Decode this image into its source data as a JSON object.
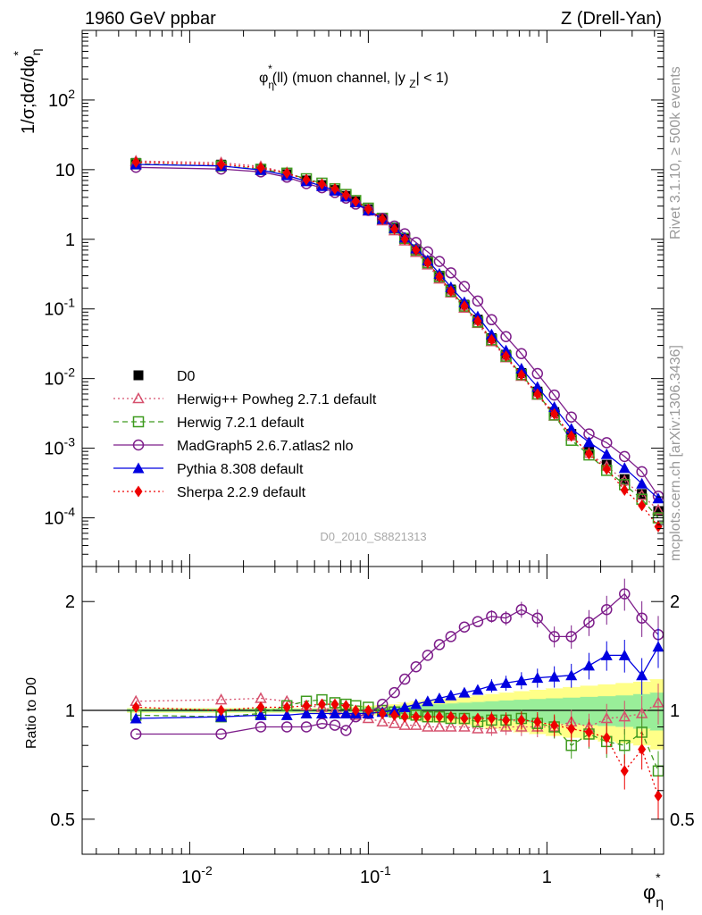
{
  "header": {
    "left": "1960 GeV ppbar",
    "right": "Z (Drell-Yan)"
  },
  "side_labels": {
    "rivet": "Rivet 3.1.10, ≥ 500k events",
    "mcplots": "mcplots.cern.ch [arXiv:1306.3436]"
  },
  "watermark": "D0_2010_S8821313",
  "chart_data": [
    {
      "type": "line",
      "title": "φη*(ll) (muon channel, |yZ| < 1)",
      "ylabel": "1/σ;dσ/dφη*",
      "xlabel": "φη*",
      "xscale": "log",
      "yscale": "log",
      "xlim": [
        0.0025,
        4.5
      ],
      "ylim": [
        2e-05,
        1000
      ],
      "x_tick_labels": [
        "10^-2",
        "10^-1",
        "1"
      ],
      "y_tick_labels": [
        "10^-4",
        "10^-3",
        "10^-2",
        "10^-1",
        "1",
        "10",
        "10^2"
      ],
      "legend_position": "lower-left",
      "x": [
        0.005,
        0.015,
        0.025,
        0.035,
        0.045,
        0.055,
        0.065,
        0.075,
        0.085,
        0.1,
        0.12,
        0.14,
        0.16,
        0.185,
        0.215,
        0.25,
        0.29,
        0.345,
        0.41,
        0.49,
        0.59,
        0.72,
        0.885,
        1.1,
        1.37,
        1.72,
        2.16,
        2.72,
        3.4,
        4.2
      ],
      "series": [
        {
          "name": "D0",
          "color": "#000000",
          "marker": "filled-square",
          "values": [
            12.5,
            11.8,
            10.3,
            8.6,
            7.0,
            6.0,
            5.1,
            4.2,
            3.5,
            2.7,
            2.0,
            1.45,
            1.05,
            0.72,
            0.48,
            0.3,
            0.19,
            0.115,
            0.07,
            0.038,
            0.022,
            0.012,
            0.0065,
            0.0033,
            0.0016,
            0.00095,
            0.00058,
            0.00036,
            0.00022,
            0.000125
          ]
        },
        {
          "name": "Herwig++ Powheg 2.7.1 default",
          "color": "#d6506d",
          "marker": "open-triangle",
          "linestyle": "dotted",
          "values": [
            13.3,
            12.6,
            11.1,
            9.1,
            7.2,
            6.1,
            5.1,
            4.1,
            3.4,
            2.55,
            1.85,
            1.33,
            0.95,
            0.65,
            0.43,
            0.27,
            0.17,
            0.103,
            0.062,
            0.034,
            0.02,
            0.0108,
            0.0058,
            0.0029,
            0.0015,
            0.00085,
            0.00055,
            0.00034,
            0.00021,
            0.00013
          ]
        },
        {
          "name": "Herwig 7.2.1 default",
          "color": "#3f9b1f",
          "marker": "open-square",
          "linestyle": "dashed",
          "values": [
            12.1,
            11.3,
            10.1,
            8.9,
            7.4,
            6.4,
            5.3,
            4.4,
            3.6,
            2.8,
            2.0,
            1.45,
            1.03,
            0.7,
            0.46,
            0.29,
            0.18,
            0.11,
            0.065,
            0.036,
            0.021,
            0.0114,
            0.006,
            0.003,
            0.0013,
            0.0008,
            0.00048,
            0.0003,
            0.000185,
            0.0001
          ]
        },
        {
          "name": "MadGraph5 2.6.7.atlas2 nlo",
          "color": "#7d1d8a",
          "marker": "open-circle",
          "linestyle": "solid",
          "values": [
            10.8,
            10.2,
            9.3,
            7.8,
            6.3,
            5.5,
            4.7,
            3.9,
            3.2,
            2.6,
            2.0,
            1.55,
            1.2,
            0.9,
            0.66,
            0.48,
            0.33,
            0.21,
            0.13,
            0.07,
            0.04,
            0.0228,
            0.0118,
            0.0058,
            0.0028,
            0.0016,
            0.0012,
            0.00076,
            0.00046,
            0.000205
          ]
        },
        {
          "name": "Pythia 8.308 default",
          "color": "#0000e0",
          "marker": "filled-triangle",
          "linestyle": "solid",
          "values": [
            11.9,
            11.3,
            9.9,
            8.3,
            6.8,
            5.8,
            5.0,
            4.1,
            3.4,
            2.6,
            1.95,
            1.45,
            1.06,
            0.74,
            0.5,
            0.32,
            0.205,
            0.125,
            0.078,
            0.043,
            0.0253,
            0.0139,
            0.0076,
            0.0039,
            0.0019,
            0.00122,
            0.00082,
            0.00052,
            0.00031,
            0.00019
          ]
        },
        {
          "name": "Sherpa 2.2.9 default",
          "color": "#ee0000",
          "marker": "filled-diamond",
          "linestyle": "dotted",
          "values": [
            12.8,
            11.9,
            10.6,
            8.9,
            7.2,
            6.2,
            5.3,
            4.3,
            3.5,
            2.7,
            1.95,
            1.4,
            1.0,
            0.7,
            0.46,
            0.29,
            0.18,
            0.11,
            0.067,
            0.036,
            0.021,
            0.0113,
            0.006,
            0.0031,
            0.0015,
            0.00083,
            0.0005,
            0.00025,
            0.00015,
            7.5e-05
          ]
        }
      ]
    },
    {
      "type": "line",
      "ylabel": "Ratio to D0",
      "xscale": "log",
      "yscale": "log",
      "xlim": [
        0.0025,
        4.5
      ],
      "ylim": [
        0.4,
        2.5
      ],
      "y_tick_labels": [
        "0.5",
        "1",
        "2"
      ],
      "x": [
        0.005,
        0.015,
        0.025,
        0.035,
        0.045,
        0.055,
        0.065,
        0.075,
        0.085,
        0.1,
        0.12,
        0.14,
        0.16,
        0.185,
        0.215,
        0.25,
        0.29,
        0.345,
        0.41,
        0.49,
        0.59,
        0.72,
        0.885,
        1.1,
        1.37,
        1.72,
        2.16,
        2.72,
        3.4,
        4.2
      ],
      "band_inner": [
        0.01,
        0.01,
        0.01,
        0.01,
        0.01,
        0.01,
        0.01,
        0.012,
        0.015,
        0.02,
        0.02,
        0.025,
        0.03,
        0.035,
        0.04,
        0.04,
        0.045,
        0.05,
        0.055,
        0.06,
        0.065,
        0.07,
        0.075,
        0.08,
        0.085,
        0.09,
        0.095,
        0.1,
        0.11,
        0.12
      ],
      "band_outer": [
        0.015,
        0.015,
        0.015,
        0.015,
        0.015,
        0.015,
        0.015,
        0.02,
        0.025,
        0.03,
        0.035,
        0.04,
        0.05,
        0.06,
        0.07,
        0.075,
        0.08,
        0.09,
        0.1,
        0.11,
        0.12,
        0.13,
        0.14,
        0.15,
        0.16,
        0.17,
        0.18,
        0.19,
        0.2,
        0.22
      ],
      "series": [
        {
          "name": "Herwig++ Powheg 2.7.1 default",
          "color": "#d6506d",
          "values": [
            1.06,
            1.07,
            1.08,
            1.06,
            1.03,
            1.02,
            1.0,
            0.98,
            0.97,
            0.95,
            0.93,
            0.92,
            0.91,
            0.91,
            0.9,
            0.9,
            0.9,
            0.9,
            0.89,
            0.89,
            0.9,
            0.9,
            0.9,
            0.9,
            0.93,
            0.9,
            0.95,
            0.96,
            0.98,
            1.05
          ]
        },
        {
          "name": "Herwig 7.2.1 default",
          "color": "#3f9b1f",
          "values": [
            0.97,
            0.96,
            0.98,
            1.03,
            1.06,
            1.07,
            1.05,
            1.04,
            1.03,
            1.02,
            1.0,
            0.99,
            0.98,
            0.97,
            0.96,
            0.96,
            0.95,
            0.95,
            0.93,
            0.94,
            0.94,
            0.95,
            0.92,
            0.9,
            0.8,
            0.86,
            0.82,
            0.8,
            0.87,
            0.68
          ]
        },
        {
          "name": "MadGraph5 2.6.7.atlas2 nlo",
          "color": "#7d1d8a",
          "values": [
            0.86,
            0.86,
            0.9,
            0.9,
            0.9,
            0.92,
            0.91,
            0.88,
            0.96,
            0.98,
            1.04,
            1.12,
            1.22,
            1.32,
            1.42,
            1.52,
            1.6,
            1.7,
            1.76,
            1.82,
            1.8,
            1.9,
            1.8,
            1.6,
            1.6,
            1.75,
            1.9,
            2.1,
            1.8,
            1.62
          ]
        },
        {
          "name": "Pythia 8.308 default",
          "color": "#0000e0",
          "values": [
            0.95,
            0.96,
            0.97,
            0.97,
            0.98,
            0.98,
            0.98,
            0.98,
            0.98,
            0.98,
            0.99,
            1.0,
            1.02,
            1.04,
            1.06,
            1.08,
            1.1,
            1.12,
            1.14,
            1.17,
            1.19,
            1.21,
            1.23,
            1.24,
            1.25,
            1.33,
            1.42,
            1.42,
            1.25,
            1.5
          ]
        },
        {
          "name": "Sherpa 2.2.9 default",
          "color": "#ee0000",
          "values": [
            1.02,
            1.0,
            1.02,
            1.02,
            1.03,
            1.04,
            1.04,
            1.03,
            1.0,
            1.0,
            0.98,
            0.97,
            0.96,
            0.96,
            0.96,
            0.96,
            0.96,
            0.95,
            0.95,
            0.95,
            0.94,
            0.94,
            0.93,
            0.91,
            0.89,
            0.87,
            0.84,
            0.68,
            0.78,
            0.58
          ]
        }
      ]
    }
  ]
}
